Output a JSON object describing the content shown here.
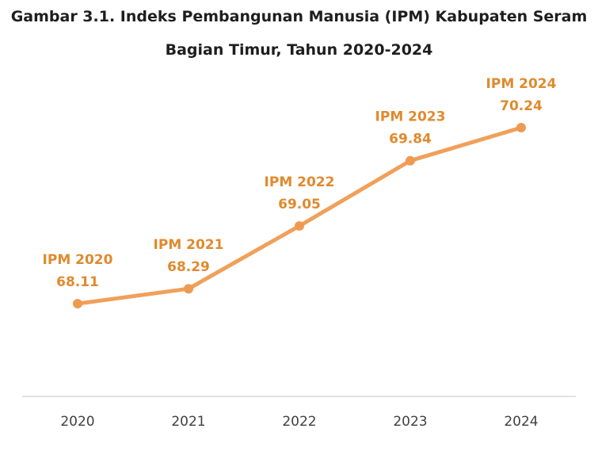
{
  "title_lines": [
    "Gambar 3.1. Indeks Pembangunan Manusia (IPM) Kabupaten Seram",
    "Bagian Timur, Tahun 2020-2024"
  ],
  "colors": {
    "line": "#f0a05a",
    "marker": "#ef9a52",
    "label": "#e08a2e",
    "axis": "#d0d0d0"
  },
  "chart_data": {
    "type": "line",
    "title": "Gambar 3.1. Indeks Pembangunan Manusia (IPM) Kabupaten Seram Bagian Timur, Tahun 2020-2024",
    "xlabel": "",
    "ylabel": "",
    "categories": [
      "2020",
      "2021",
      "2022",
      "2023",
      "2024"
    ],
    "series": [
      {
        "values": [
          68.11,
          68.29,
          69.05,
          69.84,
          70.24
        ],
        "point_labels": [
          "IPM 2020",
          "IPM 2021",
          "IPM 2022",
          "IPM 2023",
          "IPM 2024"
        ],
        "value_labels": [
          "68.11",
          "68.29",
          "69.05",
          "69.84",
          "70.24"
        ]
      }
    ],
    "grid": false,
    "legend": "none"
  }
}
